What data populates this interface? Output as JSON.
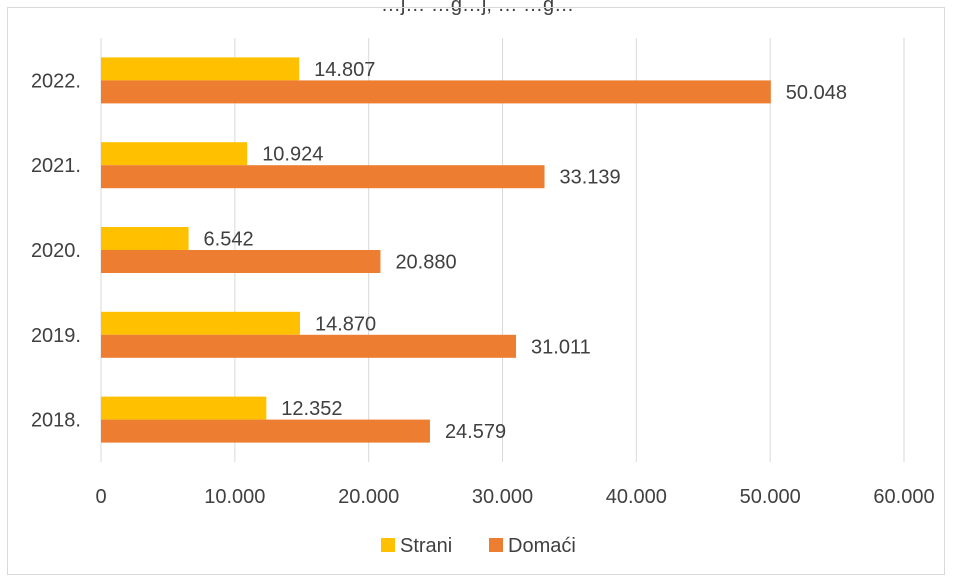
{
  "chart_data": {
    "type": "bar",
    "orientation": "horizontal",
    "title": "…j… …g…j, … …g…",
    "categories": [
      "2022.",
      "2021.",
      "2020.",
      "2019.",
      "2018."
    ],
    "series": [
      {
        "name": "Strani",
        "color": "#ffc000",
        "values": [
          14807,
          10924,
          6542,
          14870,
          12352
        ],
        "labels": [
          "14.807",
          "10.924",
          "6.542",
          "14.870",
          "12.352"
        ]
      },
      {
        "name": "Domaći",
        "color": "#ed7d31",
        "values": [
          50048,
          33139,
          20880,
          31011,
          24579
        ],
        "labels": [
          "50.048",
          "33.139",
          "20.880",
          "31.011",
          "24.579"
        ]
      }
    ],
    "xlim": [
      0,
      60000
    ],
    "xticks": [
      0,
      10000,
      20000,
      30000,
      40000,
      50000,
      60000
    ],
    "xtick_labels": [
      "0",
      "10.000",
      "20.000",
      "30.000",
      "40.000",
      "50.000",
      "60.000"
    ],
    "grid": "vertical",
    "legend_position": "bottom"
  }
}
